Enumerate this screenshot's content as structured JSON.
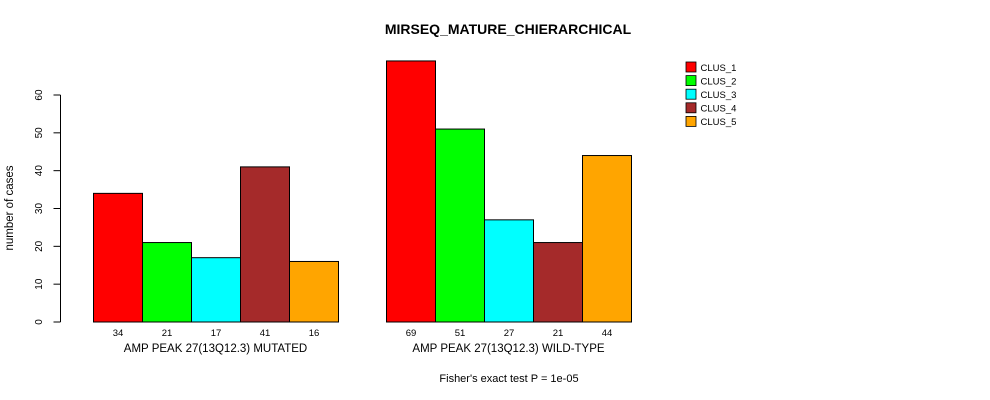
{
  "figure": {
    "title": "MIRSEQ_MATURE_CHIERARCHICAL",
    "ylabel": "number of cases",
    "footnote": "Fisher's exact test P = 1e-05"
  },
  "chart_data": {
    "type": "bar",
    "title": "MIRSEQ_MATURE_CHIERARCHICAL",
    "xlabel": "",
    "ylabel": "number of cases",
    "ylim": [
      0,
      60
    ],
    "yticks": [
      0,
      10,
      20,
      30,
      40,
      50,
      60
    ],
    "grid": false,
    "legend_position": "top-right",
    "bar_border_color": "#000000",
    "value_labels_shown": true,
    "categories": [
      "AMP PEAK 27(13Q12.3) MUTATED",
      "AMP PEAK 27(13Q12.3) WILD-TYPE"
    ],
    "series": [
      {
        "name": "CLUS_1",
        "color": "#FF0000",
        "values": [
          34,
          69
        ]
      },
      {
        "name": "CLUS_2",
        "color": "#00FF00",
        "values": [
          21,
          51
        ]
      },
      {
        "name": "CLUS_3",
        "color": "#00FFFF",
        "values": [
          17,
          27
        ]
      },
      {
        "name": "CLUS_4",
        "color": "#A52A2A",
        "values": [
          41,
          21
        ]
      },
      {
        "name": "CLUS_5",
        "color": "#FFA500",
        "values": [
          16,
          44
        ]
      }
    ],
    "annotation": "Fisher's exact test P = 1e-05"
  }
}
